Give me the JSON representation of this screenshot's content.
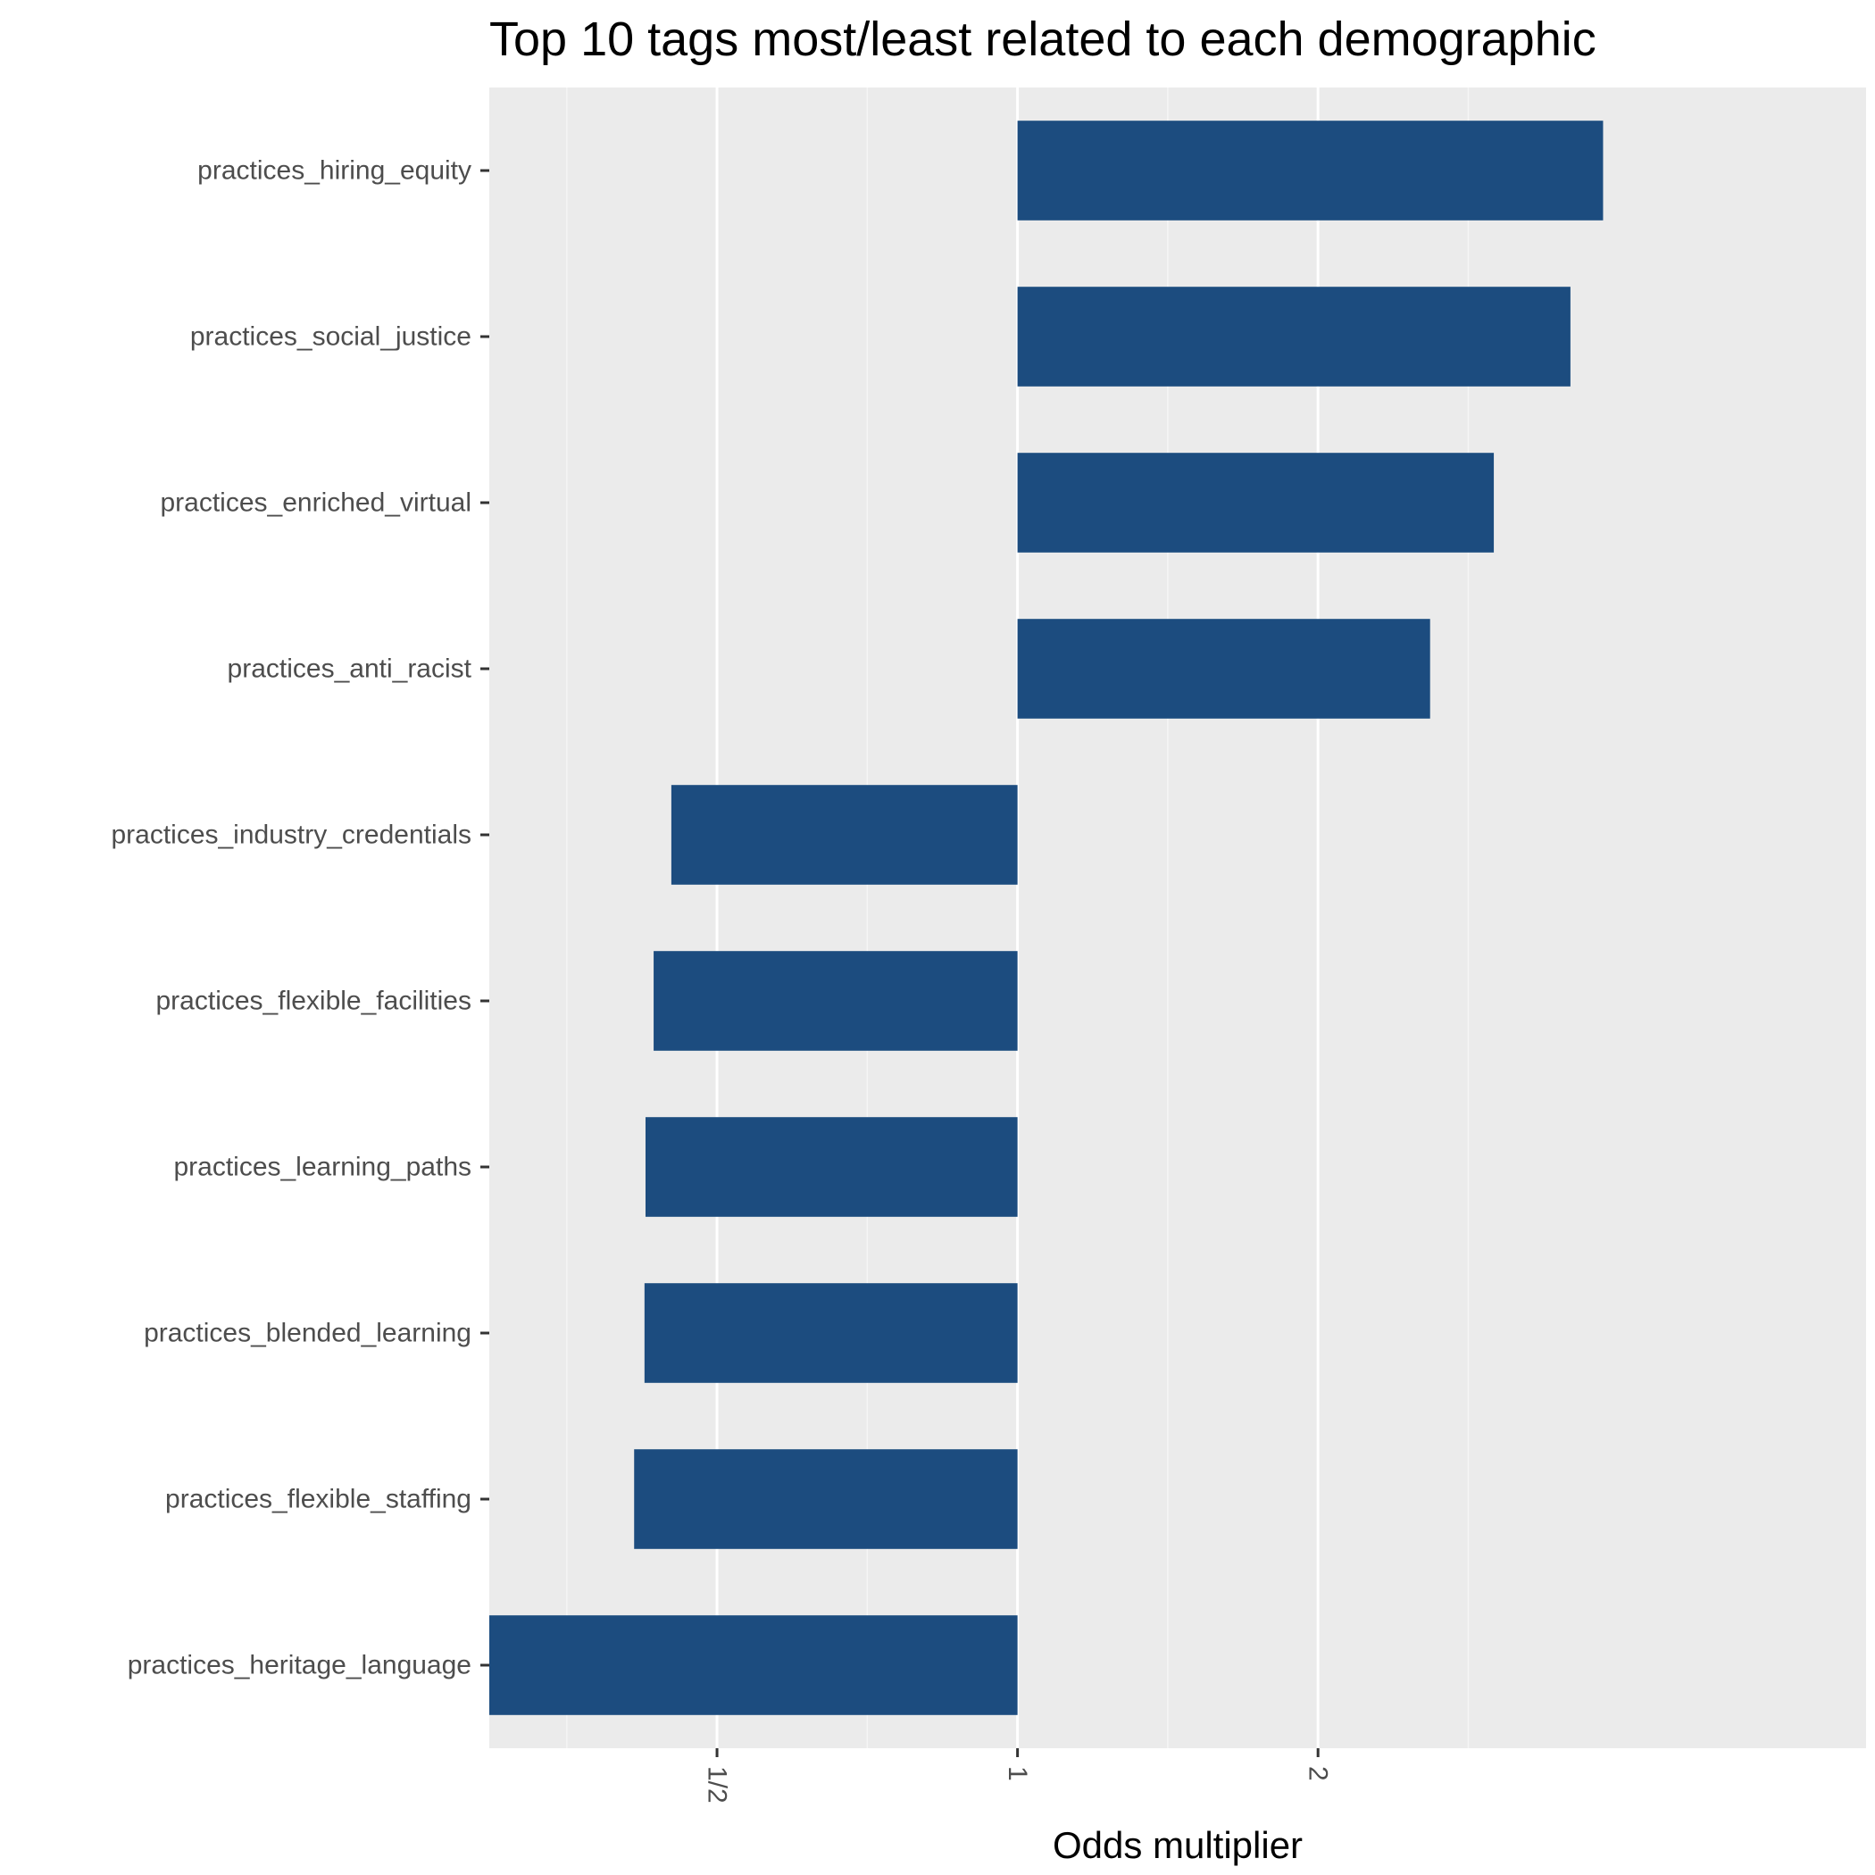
{
  "chart_data": {
    "type": "bar",
    "orientation": "horizontal",
    "title": "Top 10 tags most/least related to each demographic",
    "xlabel": "Odds multiplier",
    "ylabel": "",
    "x_scale": "log2",
    "xlim": [
      0.2957,
      7.08
    ],
    "baseline": 1,
    "x_ticks": [
      {
        "value": 0.5,
        "label": "1/2"
      },
      {
        "value": 1,
        "label": "1"
      },
      {
        "value": 2,
        "label": "2"
      }
    ],
    "x_minor_grid": [
      0.3536,
      0.7071,
      1.4142,
      2.8284
    ],
    "categories": [
      "practices_hiring_equity",
      "practices_social_justice",
      "practices_enriched_virtual",
      "practices_anti_racist",
      "practices_industry_credentials",
      "practices_flexible_facilities",
      "practices_learning_paths",
      "practices_blended_learning",
      "practices_flexible_staffing",
      "practices_heritage_language"
    ],
    "values": [
      3.86,
      3.58,
      3.0,
      2.59,
      0.45,
      0.432,
      0.424,
      0.423,
      0.413,
      0.2957
    ],
    "grid": true,
    "legend": "none",
    "colors": {
      "bar": "#1c4c7f",
      "panel_bg": "#ebebeb",
      "grid_major": "#ffffff",
      "grid_minor": "#f5f5f5",
      "tick": "#333333"
    }
  }
}
